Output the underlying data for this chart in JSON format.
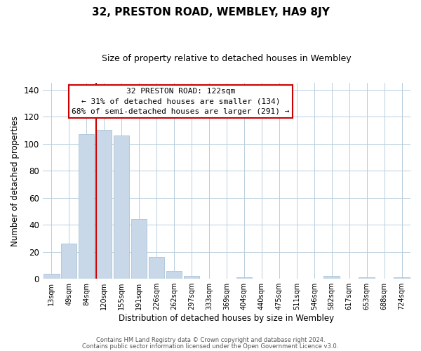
{
  "title": "32, PRESTON ROAD, WEMBLEY, HA9 8JY",
  "subtitle": "Size of property relative to detached houses in Wembley",
  "xlabel": "Distribution of detached houses by size in Wembley",
  "ylabel": "Number of detached properties",
  "bar_color": "#c8d8e8",
  "bar_edge_color": "#a8c4d8",
  "background_color": "#ffffff",
  "grid_color": "#b8cedd",
  "annotation_box_edge": "#cc0000",
  "vline_color": "#cc0000",
  "annotation_text_line1": "32 PRESTON ROAD: 122sqm",
  "annotation_text_line2": "← 31% of detached houses are smaller (134)",
  "annotation_text_line3": "68% of semi-detached houses are larger (291) →",
  "bin_labels": [
    "13sqm",
    "49sqm",
    "84sqm",
    "120sqm",
    "155sqm",
    "191sqm",
    "226sqm",
    "262sqm",
    "297sqm",
    "333sqm",
    "369sqm",
    "404sqm",
    "440sqm",
    "475sqm",
    "511sqm",
    "546sqm",
    "582sqm",
    "617sqm",
    "653sqm",
    "688sqm",
    "724sqm"
  ],
  "bar_heights": [
    4,
    26,
    107,
    110,
    106,
    44,
    16,
    6,
    2,
    0,
    0,
    1,
    0,
    0,
    0,
    0,
    2,
    0,
    1,
    0,
    1
  ],
  "ylim": [
    0,
    145
  ],
  "yticks": [
    0,
    20,
    40,
    60,
    80,
    100,
    120,
    140
  ],
  "footer_line1": "Contains HM Land Registry data © Crown copyright and database right 2024.",
  "footer_line2": "Contains public sector information licensed under the Open Government Licence v3.0."
}
